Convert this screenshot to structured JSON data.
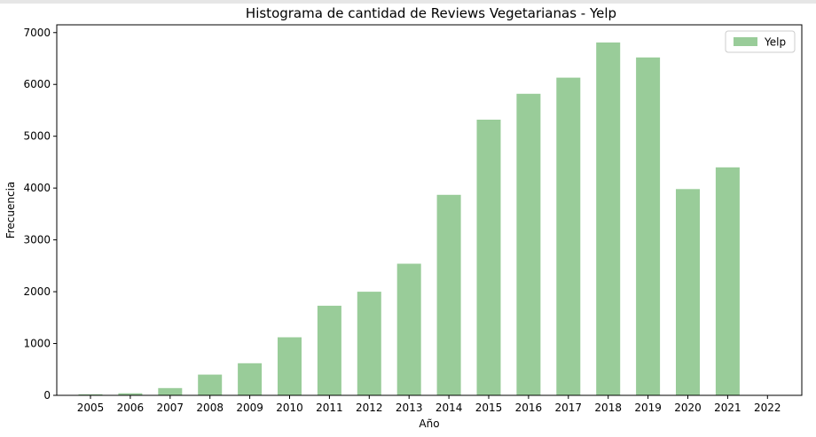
{
  "chart_data": {
    "type": "bar",
    "title": "Histograma de cantidad de Reviews Vegetarianas - Yelp",
    "xlabel": "Año",
    "ylabel": "Frecuencia",
    "categories": [
      "2005",
      "2006",
      "2007",
      "2008",
      "2009",
      "2010",
      "2011",
      "2012",
      "2013",
      "2014",
      "2015",
      "2016",
      "2017",
      "2018",
      "2019",
      "2020",
      "2021",
      "2022"
    ],
    "yticks": [
      0,
      1000,
      2000,
      3000,
      4000,
      5000,
      6000,
      7000
    ],
    "ylim": [
      0,
      7150
    ],
    "grid": false,
    "legend_position": "top-right",
    "series": [
      {
        "name": "Yelp",
        "color": "#99cc99",
        "values": [
          20,
          40,
          140,
          400,
          620,
          1120,
          1730,
          2000,
          2540,
          3870,
          5320,
          5820,
          6130,
          6810,
          6520,
          3980,
          4400,
          0
        ]
      }
    ]
  }
}
